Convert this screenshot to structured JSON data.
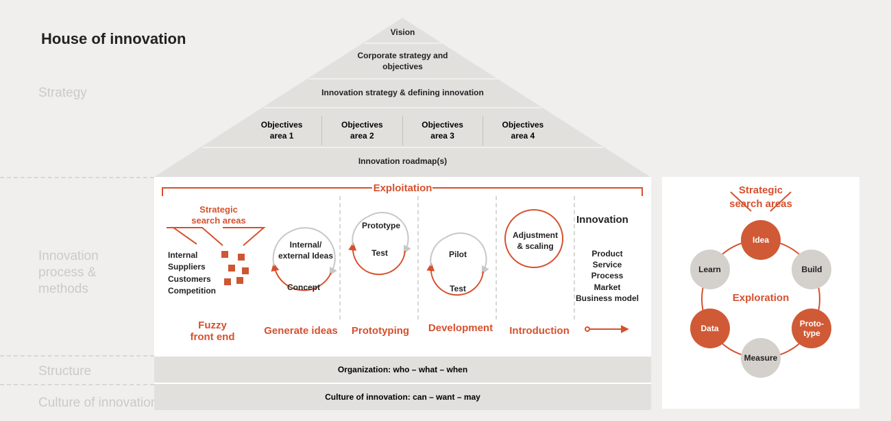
{
  "title": "House of innovation",
  "colors": {
    "bg": "#f0efee",
    "panel_grey": "#e2e0dd",
    "accent": "#d6502d",
    "node_orange": "#d05a36",
    "node_grey": "#d4d0cc",
    "text": "#222222",
    "side_label": "#cccac7",
    "dash": "#d9d7d5"
  },
  "side_labels": {
    "strategy": "Strategy",
    "process": "Innovation\nprocess &\nmethods",
    "structure": "Structure",
    "culture": "Culture of innovation"
  },
  "roof": {
    "vision": "Vision",
    "corporate": "Corporate strategy and\nobjectives",
    "innov_strategy": "Innovation strategy & defining innovation",
    "objectives": [
      "Objectives\narea 1",
      "Objectives\narea 2",
      "Objectives\narea 3",
      "Objectives\narea 4"
    ],
    "roadmap": "Innovation roadmap(s)"
  },
  "mid": {
    "exploitation": "Exploitation",
    "search_areas": "Strategic\nsearch areas",
    "sources": [
      "Internal",
      "Suppliers",
      "Customers",
      "Competition"
    ],
    "fuzzy": "Fuzzy\nfront end",
    "stages": {
      "generate": "Generate ideas",
      "prototyping": "Prototyping",
      "development": "Development",
      "introduction": "Introduction"
    },
    "cycle1": {
      "top": "Internal/\nexternal Ideas",
      "bottom": "Concept"
    },
    "cycle2": {
      "top": "Prototype",
      "bottom": "Test"
    },
    "cycle3": {
      "top": "Pilot",
      "bottom": "Test"
    },
    "single": "Adjustment\n& scaling",
    "innovation_title": "Innovation",
    "innovation_list": [
      "Product",
      "Service",
      "Process",
      "Market",
      "Business model"
    ]
  },
  "bottom": {
    "structure": "Organization: who – what – when",
    "culture": "Culture of innovation: can – want – may"
  },
  "right": {
    "search_areas": "Strategic\nsearch areas",
    "exploration": "Exploration",
    "nodes": [
      {
        "label": "Idea",
        "color": "orange",
        "angle": -90
      },
      {
        "label": "Build",
        "color": "grey",
        "angle": -30
      },
      {
        "label": "Proto-\ntype",
        "color": "orange",
        "angle": 30
      },
      {
        "label": "Measure",
        "color": "grey",
        "angle": 90
      },
      {
        "label": "Data",
        "color": "orange",
        "angle": 150
      },
      {
        "label": "Learn",
        "color": "grey",
        "angle": 210
      }
    ]
  }
}
